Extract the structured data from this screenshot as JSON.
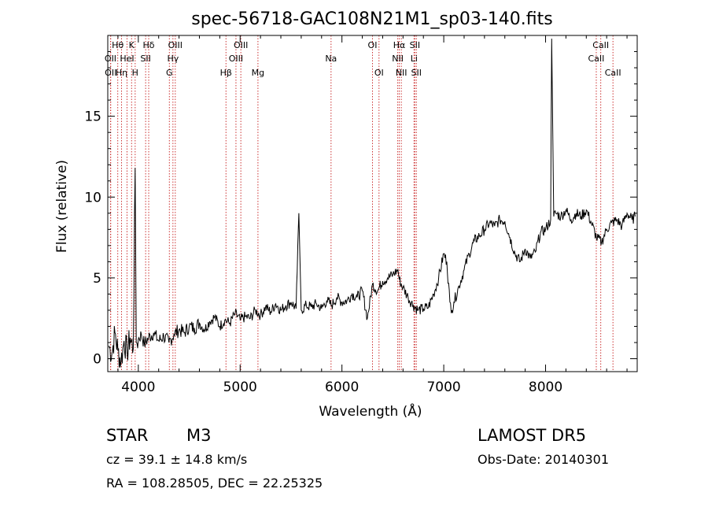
{
  "chart_data": {
    "type": "line",
    "title": "spec-56718-GAC108N21M1_sp03-140.fits",
    "xlabel": "Wavelength (Å)",
    "ylabel": "Flux (relative)",
    "xlim": [
      3700,
      8900
    ],
    "ylim": [
      -0.8,
      20
    ],
    "xticks": [
      4000,
      5000,
      6000,
      7000,
      8000
    ],
    "yticks": [
      0,
      5,
      10,
      15
    ],
    "grid": false,
    "legend": "none",
    "line_color": "#000000",
    "marker_color": "#cc3333",
    "series": [
      {
        "x": [
          3710,
          3740,
          3770,
          3800,
          3830,
          3860,
          3890,
          3920,
          3950,
          3969,
          3980,
          4000,
          4030,
          4060,
          4100,
          4150,
          4200,
          4250,
          4300,
          4350,
          4400,
          4450,
          4500,
          4550,
          4600,
          4650,
          4700,
          4750,
          4800,
          4850,
          4900,
          4950,
          5000,
          5050,
          5100,
          5150,
          5200,
          5250,
          5300,
          5350,
          5400,
          5450,
          5500,
          5550,
          5577,
          5600,
          5650,
          5700,
          5750,
          5800,
          5850,
          5900,
          5950,
          6000,
          6050,
          6100,
          6150,
          6200,
          6250,
          6300,
          6350,
          6400,
          6450,
          6500,
          6550,
          6563,
          6600,
          6650,
          6700,
          6750,
          6800,
          6850,
          6900,
          6950,
          7000,
          7030,
          7060,
          7080,
          7100,
          7150,
          7200,
          7250,
          7300,
          7350,
          7400,
          7450,
          7500,
          7550,
          7600,
          7650,
          7700,
          7750,
          7800,
          7850,
          7900,
          7950,
          8000,
          8050,
          8060,
          8080,
          8100,
          8150,
          8200,
          8250,
          8300,
          8350,
          8400,
          8450,
          8500,
          8550,
          8600,
          8650,
          8700,
          8750,
          8800,
          8850,
          8880
        ],
        "y": [
          0.8,
          0.3,
          1.6,
          0.5,
          -0.2,
          1.1,
          0.4,
          1.3,
          0.6,
          11.8,
          1.0,
          1.2,
          1.5,
          0.9,
          1.3,
          1.6,
          1.1,
          1.4,
          1.0,
          1.5,
          1.8,
          1.6,
          2.0,
          1.9,
          2.2,
          1.8,
          2.3,
          2.6,
          2.0,
          2.4,
          2.2,
          2.8,
          2.4,
          2.6,
          2.5,
          3.0,
          2.7,
          3.2,
          2.9,
          3.4,
          3.0,
          3.3,
          3.5,
          3.1,
          9.0,
          3.0,
          3.3,
          3.2,
          3.4,
          3.1,
          3.6,
          3.3,
          3.8,
          3.5,
          3.6,
          4.0,
          3.8,
          4.2,
          2.5,
          4.6,
          4.2,
          4.8,
          5.0,
          5.2,
          5.5,
          4.9,
          4.4,
          3.8,
          3.3,
          3.0,
          3.1,
          3.2,
          4.0,
          5.0,
          6.5,
          6.0,
          3.5,
          3.0,
          3.5,
          4.5,
          5.5,
          6.5,
          7.3,
          7.6,
          8.0,
          8.4,
          8.2,
          8.6,
          8.5,
          7.5,
          6.5,
          6.0,
          6.8,
          6.2,
          6.6,
          7.8,
          8.0,
          8.6,
          19.8,
          8.8,
          9.0,
          8.8,
          9.2,
          8.6,
          9.0,
          8.8,
          9.2,
          8.4,
          7.5,
          7.2,
          8.0,
          8.4,
          8.6,
          8.2,
          9.0,
          8.6,
          8.8
        ]
      }
    ],
    "lines": [
      {
        "label": "Hθ",
        "x": 3798,
        "row": 0
      },
      {
        "label": "OII",
        "x": 3727,
        "row": 1
      },
      {
        "label": "OII",
        "x": 3729,
        "row": 2
      },
      {
        "label": "Hη",
        "x": 3835,
        "row": 2
      },
      {
        "label": "K",
        "x": 3934,
        "row": 0
      },
      {
        "label": "HeI",
        "x": 3889,
        "row": 1
      },
      {
        "label": "H",
        "x": 3969,
        "row": 2
      },
      {
        "label": "Hδ",
        "x": 4102,
        "row": 0
      },
      {
        "label": "SII",
        "x": 4072,
        "row": 1
      },
      {
        "label": "OIII",
        "x": 4363,
        "row": 0
      },
      {
        "label": "Hγ",
        "x": 4340,
        "row": 1
      },
      {
        "label": "G",
        "x": 4305,
        "row": 2
      },
      {
        "label": "OIII",
        "x": 5007,
        "row": 0
      },
      {
        "label": "OIII",
        "x": 4959,
        "row": 1
      },
      {
        "label": "Hβ",
        "x": 4861,
        "row": 2
      },
      {
        "label": "Mg",
        "x": 5175,
        "row": 2
      },
      {
        "label": "Na",
        "x": 5893,
        "row": 1
      },
      {
        "label": "OI",
        "x": 6300,
        "row": 0
      },
      {
        "label": "OI",
        "x": 6364,
        "row": 2
      },
      {
        "label": "Hα",
        "x": 6563,
        "row": 0
      },
      {
        "label": "NII",
        "x": 6548,
        "row": 1
      },
      {
        "label": "NII",
        "x": 6583,
        "row": 2
      },
      {
        "label": "SII",
        "x": 6716,
        "row": 0
      },
      {
        "label": "Li",
        "x": 6708,
        "row": 1
      },
      {
        "label": "SII",
        "x": 6731,
        "row": 2
      },
      {
        "label": "CaII",
        "x": 8542,
        "row": 0
      },
      {
        "label": "CaII",
        "x": 8498,
        "row": 1
      },
      {
        "label": "CaII",
        "x": 8662,
        "row": 2
      }
    ]
  },
  "info": {
    "class": "STAR",
    "subclass": "M3",
    "survey": "LAMOST DR5",
    "cz": "cz = 39.1 ± 14.8 km/s",
    "obs_date": "Obs-Date: 20140301",
    "coords": "RA = 108.28505, DEC =  22.25325"
  }
}
